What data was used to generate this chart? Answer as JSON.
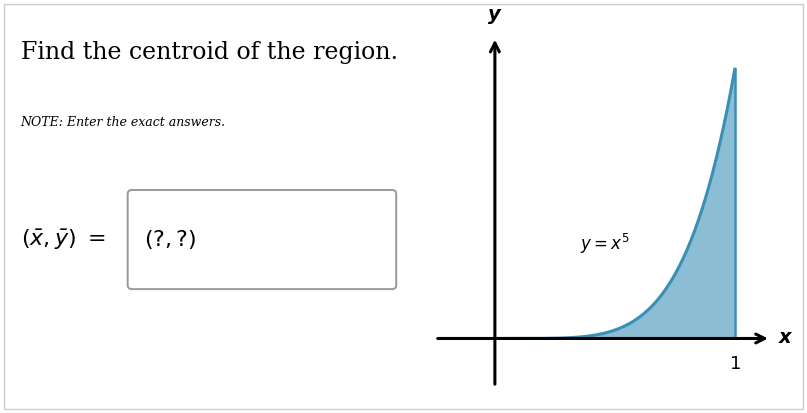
{
  "title": "Find the centroid of the region.",
  "note": "NOTE: Enter the exact answers.",
  "fill_color": "#8bbdd4",
  "curve_color": "#3a8fb5",
  "axis_color": "#000000",
  "background_color": "#ffffff",
  "box_edge_color": "#999999",
  "text_color": "#000000"
}
